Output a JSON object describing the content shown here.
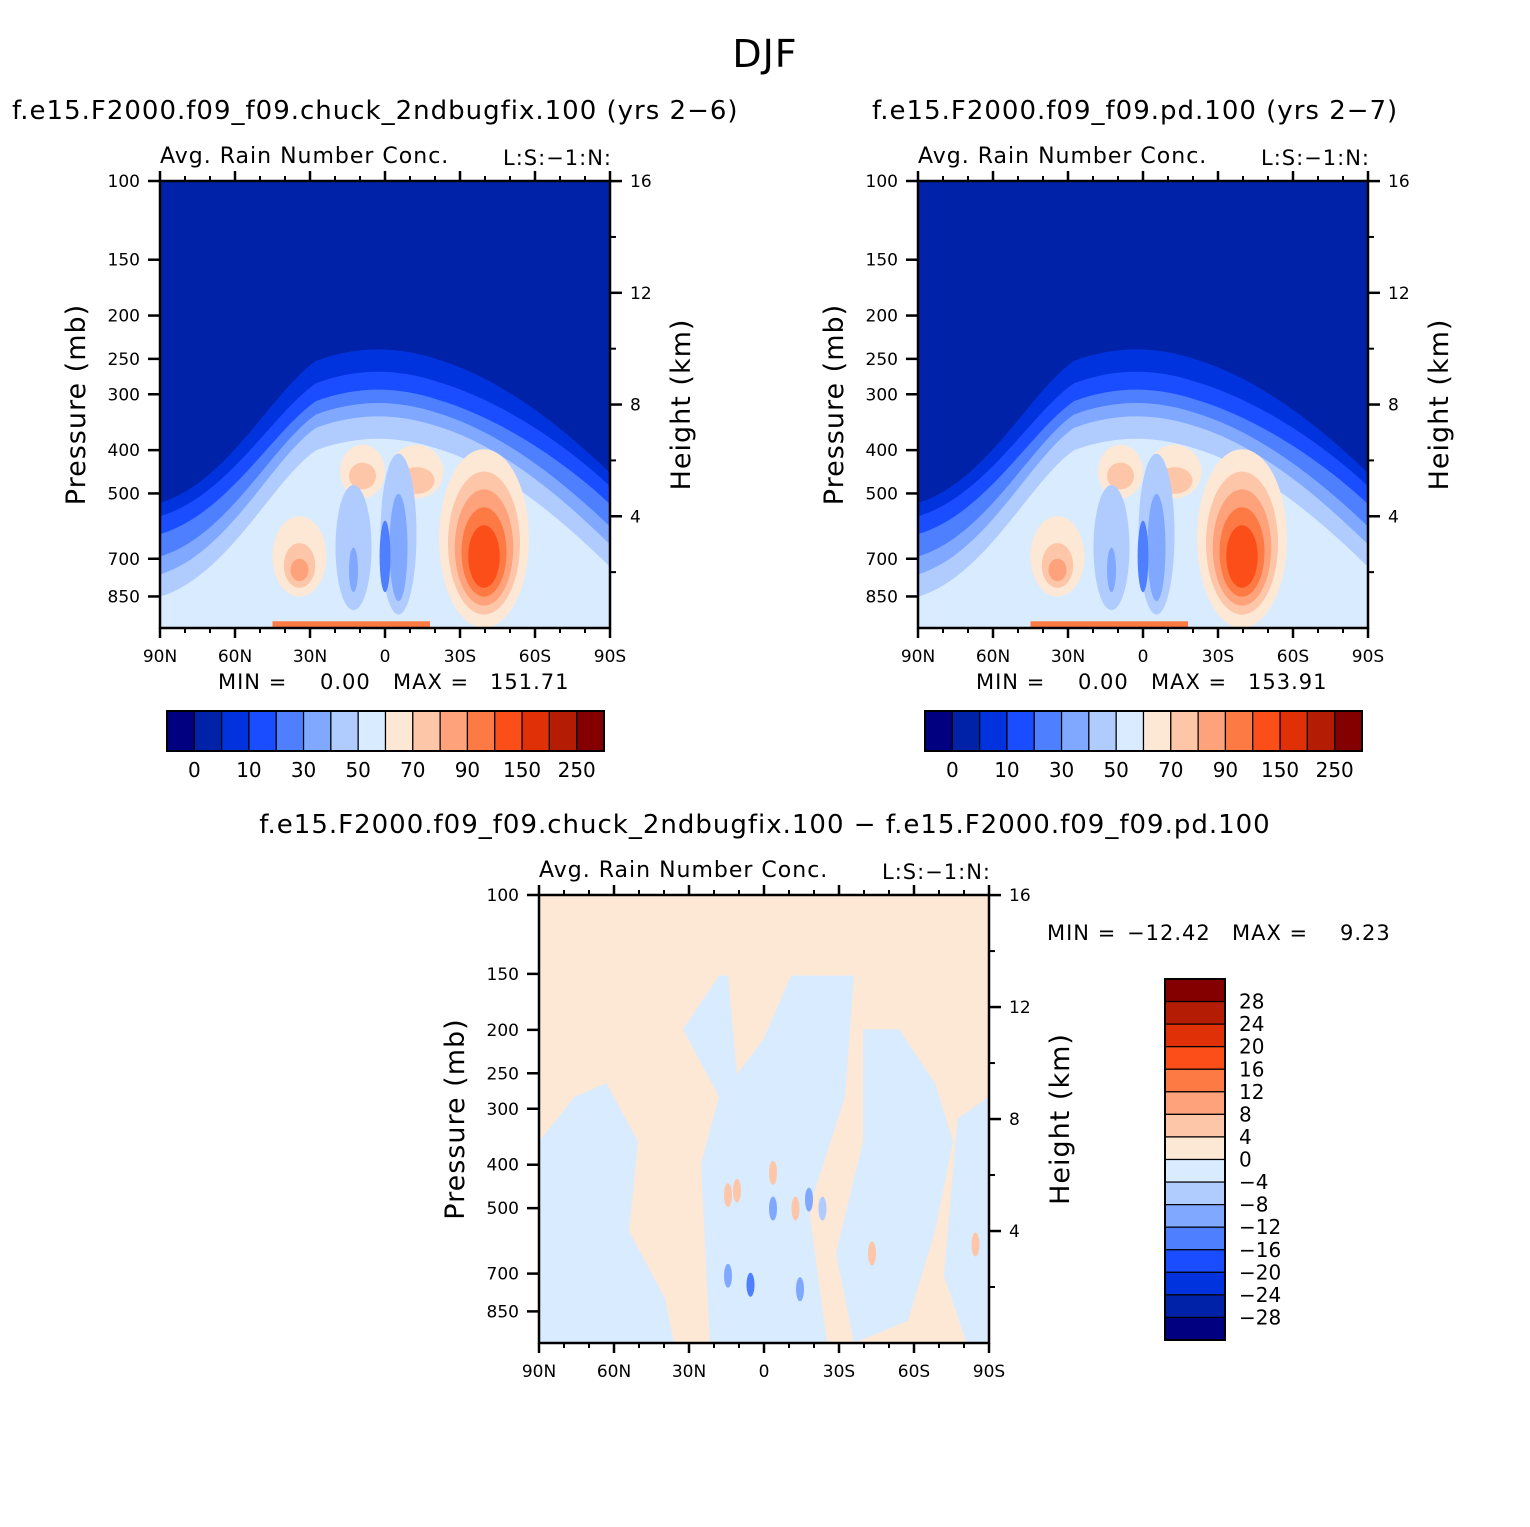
{
  "figure": {
    "title": "DJF"
  },
  "panels": [
    {
      "id": "left",
      "case_title": "f.e15.F2000.f09_f09.chuck_2ndbugfix.100 (yrs 2−6)",
      "subtitle": "Avg. Rain Number Conc.",
      "corner_label": "L:S:−1:N:",
      "min_label": "MIN =",
      "min_value": "0.00",
      "max_label": "MAX =",
      "max_value": "151.71"
    },
    {
      "id": "right",
      "case_title": "f.e15.F2000.f09_f09.pd.100 (yrs 2−7)",
      "subtitle": "Avg. Rain Number Conc.",
      "corner_label": "L:S:−1:N:",
      "min_label": "MIN =",
      "min_value": "0.00",
      "max_label": "MAX =",
      "max_value": "153.91"
    },
    {
      "id": "diff",
      "case_title": "f.e15.F2000.f09_f09.chuck_2ndbugfix.100 − f.e15.F2000.f09_f09.pd.100",
      "subtitle": "Avg. Rain Number Conc.",
      "corner_label": "L:S:−1:N:",
      "min_label": "MIN =",
      "min_value": "−12.42",
      "max_label": "MAX =",
      "max_value": "9.23"
    }
  ],
  "chart_data": [
    {
      "type": "heatmap",
      "title": "f.e15.F2000.f09_f09.chuck_2ndbugfix.100 (yrs 2−6)",
      "subtitle": "Avg. Rain Number Conc.",
      "xlabel": "",
      "ylabel": "Pressure (mb)",
      "y2label": "Height (km)",
      "x_ticks": [
        "90N",
        "60N",
        "30N",
        "0",
        "30S",
        "60S",
        "90S"
      ],
      "y_ticks": [
        100,
        150,
        200,
        250,
        300,
        400,
        500,
        700,
        850
      ],
      "y2_ticks": [
        16,
        12,
        8,
        4
      ],
      "y_scale": "log",
      "y_range": [
        100,
        1000
      ],
      "x_range": [
        90,
        -90
      ],
      "colorbar_labels": [
        "0",
        "10",
        "30",
        "50",
        "70",
        "90",
        "150",
        "250"
      ],
      "colors": [
        "#000080",
        "#0022a8",
        "#0033dd",
        "#1a4dff",
        "#4d7fff",
        "#80a8ff",
        "#b0ccff",
        "#d8ebff",
        "#fde8d6",
        "#fdc6a8",
        "#fda27a",
        "#fd7a45",
        "#fb4e18",
        "#e03008",
        "#b41c04",
        "#840000"
      ],
      "min": 0.0,
      "max": 151.71
    },
    {
      "type": "heatmap",
      "title": "f.e15.F2000.f09_f09.pd.100 (yrs 2−7)",
      "subtitle": "Avg. Rain Number Conc.",
      "xlabel": "",
      "ylabel": "Pressure (mb)",
      "y2label": "Height (km)",
      "x_ticks": [
        "90N",
        "60N",
        "30N",
        "0",
        "30S",
        "60S",
        "90S"
      ],
      "y_ticks": [
        100,
        150,
        200,
        250,
        300,
        400,
        500,
        700,
        850
      ],
      "y2_ticks": [
        16,
        12,
        8,
        4
      ],
      "y_scale": "log",
      "y_range": [
        100,
        1000
      ],
      "x_range": [
        90,
        -90
      ],
      "colorbar_labels": [
        "0",
        "10",
        "30",
        "50",
        "70",
        "90",
        "150",
        "250"
      ],
      "colors": [
        "#000080",
        "#0022a8",
        "#0033dd",
        "#1a4dff",
        "#4d7fff",
        "#80a8ff",
        "#b0ccff",
        "#d8ebff",
        "#fde8d6",
        "#fdc6a8",
        "#fda27a",
        "#fd7a45",
        "#fb4e18",
        "#e03008",
        "#b41c04",
        "#840000"
      ],
      "min": 0.0,
      "max": 153.91
    },
    {
      "type": "heatmap",
      "title": "f.e15.F2000.f09_f09.chuck_2ndbugfix.100 − f.e15.F2000.f09_f09.pd.100",
      "subtitle": "Avg. Rain Number Conc.",
      "xlabel": "",
      "ylabel": "Pressure (mb)",
      "y2label": "Height (km)",
      "x_ticks": [
        "90N",
        "60N",
        "30N",
        "0",
        "30S",
        "60S",
        "90S"
      ],
      "y_ticks": [
        100,
        150,
        200,
        250,
        300,
        400,
        500,
        700,
        850
      ],
      "y2_ticks": [
        16,
        12,
        8,
        4
      ],
      "y_scale": "log",
      "y_range": [
        100,
        1000
      ],
      "x_range": [
        90,
        -90
      ],
      "colorbar_labels": [
        "28",
        "24",
        "20",
        "16",
        "12",
        "8",
        "4",
        "0",
        "−4",
        "−8",
        "−12",
        "−16",
        "−20",
        "−24",
        "−28"
      ],
      "colors": [
        "#840000",
        "#b41c04",
        "#e03008",
        "#fb4e18",
        "#fd7a45",
        "#fda27a",
        "#fdc6a8",
        "#fde8d6",
        "#d8ebff",
        "#b0ccff",
        "#80a8ff",
        "#4d7fff",
        "#1a4dff",
        "#0033dd",
        "#0022a8",
        "#000080"
      ],
      "min": -12.42,
      "max": 9.23
    }
  ]
}
